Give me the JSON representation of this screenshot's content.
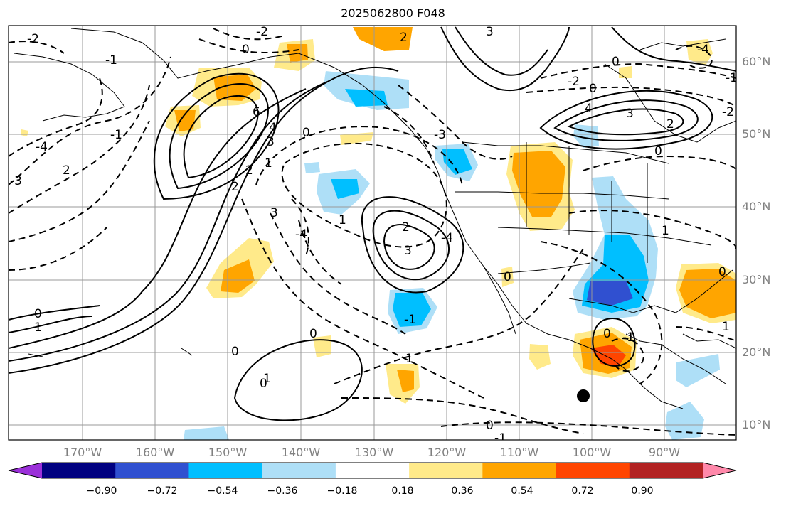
{
  "title": "2025062800 F048",
  "lat_labels": [
    "60°N",
    "50°N",
    "40°N",
    "30°N",
    "20°N",
    "10°N"
  ],
  "lon_labels": [
    "170°W",
    "160°W",
    "150°W",
    "140°W",
    "130°W",
    "120°W",
    "110°W",
    "100°W",
    "90°W"
  ],
  "colorbar": {
    "ticks": [
      "−0.90",
      "−0.72",
      "−0.54",
      "−0.36",
      "−0.18",
      "0.18",
      "0.36",
      "0.54",
      "0.72",
      "0.90"
    ],
    "colors": [
      "#9b30d9",
      "#000080",
      "#3050d0",
      "#00bfff",
      "#aedff7",
      "#ffffff",
      "#ffea8a",
      "#ffa500",
      "#ff4500",
      "#b22222",
      "#ff88aa"
    ]
  },
  "contour_labels": [
    "-2",
    "-2",
    "0",
    "2",
    "-1",
    "3",
    "-2",
    "-4",
    "-1",
    "0",
    "0",
    "6",
    "-4",
    "3",
    "4",
    "0",
    "-1",
    "2",
    "1",
    "-3",
    "-4",
    "2",
    "2",
    "3",
    "1",
    "4",
    "-2",
    "0",
    "-3",
    "0",
    "0",
    "2",
    "3",
    "-4",
    "2",
    "3",
    "0",
    "1",
    "0",
    "-1",
    "1",
    "0",
    "0",
    "-1",
    "0",
    "-1",
    "1",
    "0",
    "1",
    "1"
  ],
  "marker": {
    "type": "black-dot"
  }
}
